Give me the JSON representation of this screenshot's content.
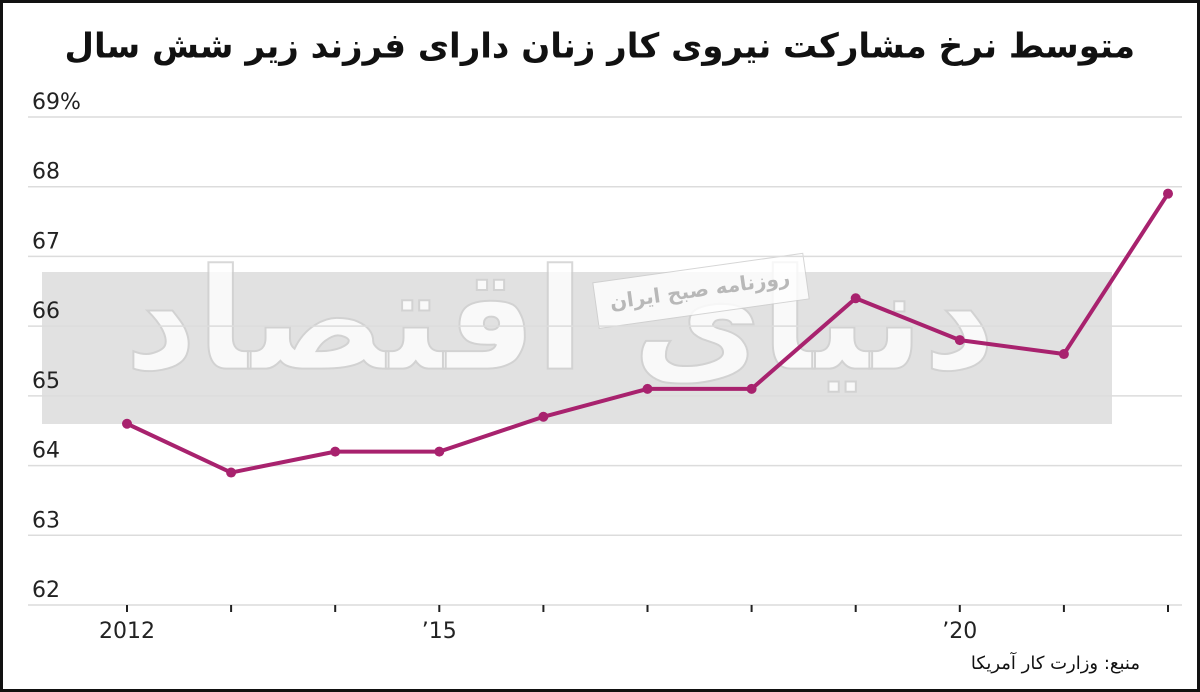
{
  "chart_data": {
    "type": "line",
    "title": "متوسط نرخ مشارکت نیروی کار زنان دارای فرزند زیر شش سال",
    "source": "منبع: وزارت کار آمریکا",
    "watermark": "دنیای اقتصاد",
    "watermark_subtitle": "روزنامه صبح ایران",
    "x": [
      2012,
      2013,
      2014,
      2015,
      2016,
      2017,
      2018,
      2019,
      2020,
      2021,
      2022
    ],
    "series": [
      {
        "color": "#a8226e",
        "values": [
          64.6,
          63.9,
          64.2,
          64.2,
          64.7,
          65.1,
          65.1,
          66.4,
          65.8,
          65.6,
          67.9
        ]
      }
    ],
    "xlim": [
      2012,
      2022
    ],
    "xticks": [
      {
        "value": 2012,
        "label": "2012"
      },
      {
        "value": 2015,
        "label": "’15"
      },
      {
        "value": 2020,
        "label": "’20"
      }
    ],
    "x_minor_ticks": [
      2013,
      2014,
      2016,
      2017,
      2018,
      2019,
      2021,
      2022
    ],
    "ylim": [
      62,
      69
    ],
    "yticks": [
      62,
      63,
      64,
      65,
      66,
      67,
      68,
      {
        "value": 69,
        "label": "69%"
      }
    ],
    "grid": true
  }
}
